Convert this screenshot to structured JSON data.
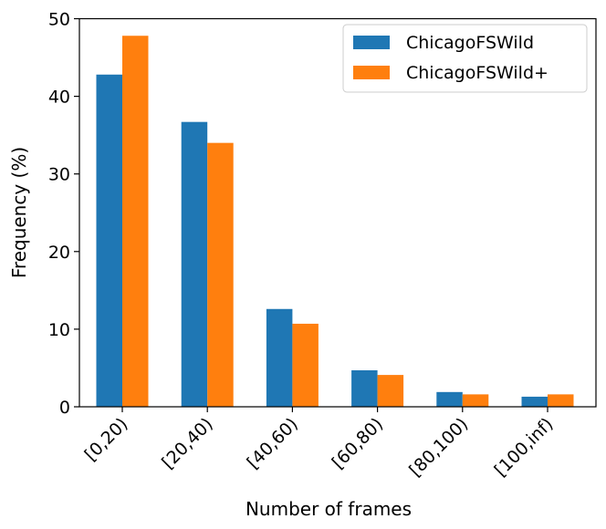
{
  "chart_data": {
    "type": "bar",
    "title": "",
    "xlabel": "Number of frames",
    "ylabel": "Frequency (%)",
    "categories": [
      "[0,20)",
      "[20,40)",
      "[40,60)",
      "[60,80)",
      "[80,100)",
      "[100,inf)"
    ],
    "series": [
      {
        "name": "ChicagoFSWild",
        "color": "#1f77b4",
        "values": [
          42.8,
          36.7,
          12.6,
          4.7,
          1.9,
          1.3
        ]
      },
      {
        "name": "ChicagoFSWild+",
        "color": "#ff7f0e",
        "values": [
          47.8,
          34.0,
          10.7,
          4.1,
          1.6,
          1.6
        ]
      }
    ],
    "ylim": [
      0,
      50
    ],
    "yticks": [
      "0",
      "10",
      "20",
      "30",
      "40",
      "50"
    ],
    "grid": false,
    "legend_position": "top-right"
  }
}
